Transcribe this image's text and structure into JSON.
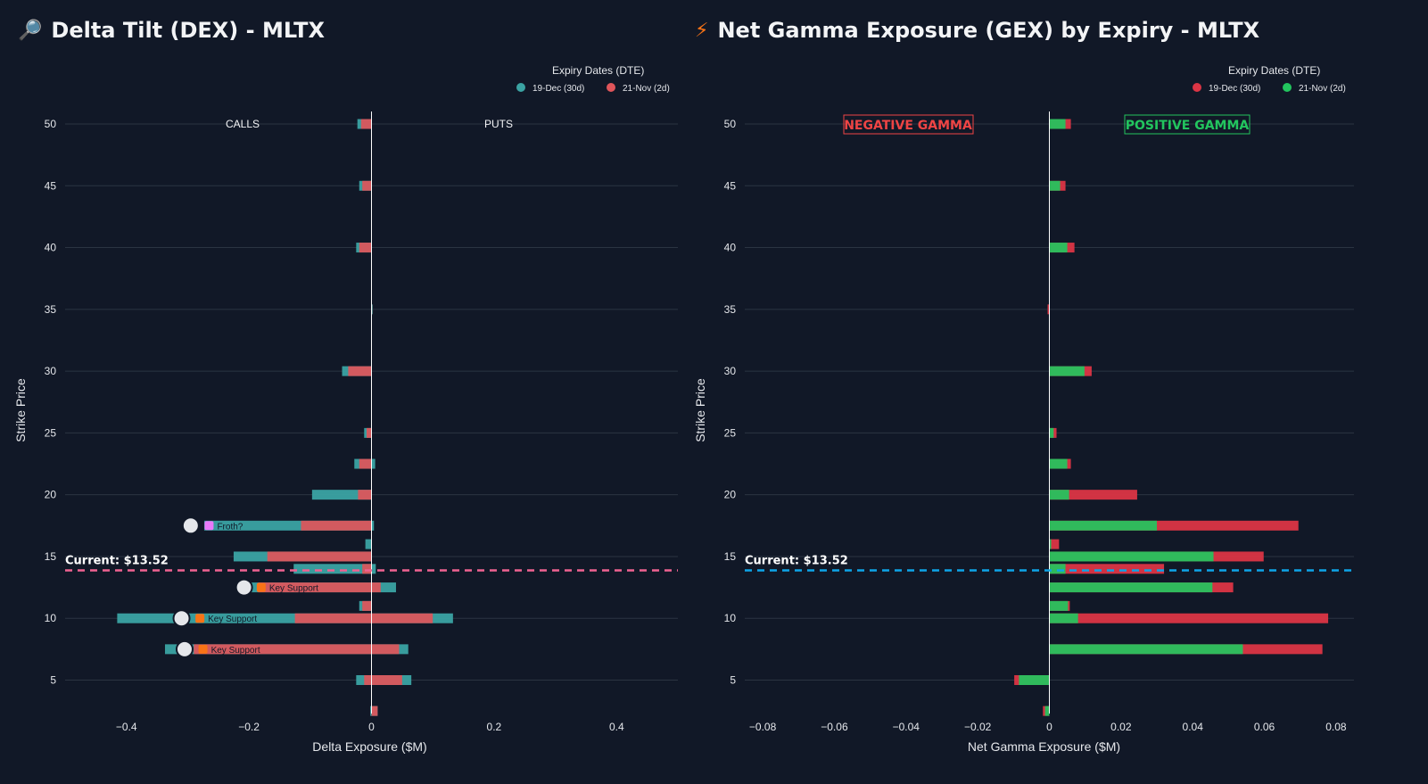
{
  "chart_data": [
    {
      "type": "bar",
      "orientation": "horizontal",
      "stacked": true,
      "title": "Delta Tilt (DEX) - MLTX",
      "title_icon": "🔎",
      "xlabel": "Delta Exposure ($M)",
      "ylabel": "Strike Price",
      "xlim": [
        -0.5,
        0.5
      ],
      "ylim": [
        2.5,
        51
      ],
      "xticks": [
        -0.4,
        -0.2,
        0,
        0.2,
        0.4
      ],
      "xtick_labels": [
        "−0.4",
        "−0.2",
        "0",
        "0.2",
        "0.4"
      ],
      "yticks": [
        5,
        10,
        15,
        20,
        25,
        30,
        35,
        40,
        45,
        50
      ],
      "legend_title": "Expiry Dates (DTE)",
      "legend_position": "top-right",
      "series": [
        {
          "name": "19-Dec (30d)",
          "color": "#3ba3a3"
        },
        {
          "name": "21-Nov (2d)",
          "color": "#e0555a"
        }
      ],
      "side_labels": {
        "left": "CALLS",
        "right": "PUTS"
      },
      "current_price": 13.52,
      "current_label": "Current: $13.52",
      "current_line_color": "#f06292",
      "bars": [
        {
          "strike": 50,
          "s1": [
            -0.023,
            0
          ],
          "s2": [
            -0.017,
            0
          ]
        },
        {
          "strike": 45,
          "s1": [
            -0.02,
            0
          ],
          "s2": [
            -0.015,
            0
          ]
        },
        {
          "strike": 40,
          "s1": [
            -0.025,
            0
          ],
          "s2": [
            -0.02,
            0
          ]
        },
        {
          "strike": 35,
          "s1": [
            0,
            0.002
          ],
          "s2": [
            0,
            0.001
          ]
        },
        {
          "strike": 30,
          "s1": [
            -0.048,
            0
          ],
          "s2": [
            -0.038,
            0
          ]
        },
        {
          "strike": 25,
          "s1": [
            -0.012,
            0
          ],
          "s2": [
            -0.008,
            0
          ]
        },
        {
          "strike": 22.5,
          "s1": [
            -0.028,
            0.006
          ],
          "s2": [
            -0.02,
            0
          ]
        },
        {
          "strike": 20,
          "s1": [
            -0.097,
            0
          ],
          "s2": [
            -0.022,
            0
          ]
        },
        {
          "strike": 17.5,
          "s1": [
            -0.273,
            0.004
          ],
          "s2": [
            -0.115,
            0
          ]
        },
        {
          "strike": 16,
          "s1": [
            -0.01,
            0
          ],
          "s2": [
            0,
            0
          ]
        },
        {
          "strike": 15,
          "s1": [
            -0.225,
            0
          ],
          "s2": [
            -0.17,
            0
          ]
        },
        {
          "strike": 14,
          "s1": [
            -0.127,
            0.007
          ],
          "s2": [
            -0.015,
            0
          ]
        },
        {
          "strike": 12.5,
          "s1": [
            -0.22,
            0.04
          ],
          "s2": [
            -0.185,
            0.015
          ]
        },
        {
          "strike": 11,
          "s1": [
            -0.02,
            0
          ],
          "s2": [
            -0.015,
            0
          ]
        },
        {
          "strike": 10,
          "s1": [
            -0.415,
            0.133
          ],
          "s2": [
            -0.125,
            0.1
          ]
        },
        {
          "strike": 7.5,
          "s1": [
            -0.337,
            0.06
          ],
          "s2": [
            -0.29,
            0.045
          ]
        },
        {
          "strike": 5,
          "s1": [
            -0.025,
            0.065
          ],
          "s2": [
            -0.012,
            0.05
          ]
        },
        {
          "strike": 2.5,
          "s1": [
            -0.002,
            0.01
          ],
          "s2": [
            0,
            0.01
          ]
        }
      ],
      "annotations": [
        {
          "strike": 17.5,
          "marker_x": -0.295,
          "badge_x": -0.265,
          "badge_color": "#e879f9",
          "text": "Froth?"
        },
        {
          "strike": 12.5,
          "marker_x": -0.208,
          "badge_x": -0.18,
          "badge_color": "#f97316",
          "text": "Key Support"
        },
        {
          "strike": 10,
          "marker_x": -0.31,
          "badge_x": -0.28,
          "badge_color": "#f97316",
          "text": "Key Support"
        },
        {
          "strike": 7.5,
          "marker_x": -0.305,
          "badge_x": -0.275,
          "badge_color": "#f97316",
          "text": "Key Support"
        }
      ]
    },
    {
      "type": "bar",
      "orientation": "horizontal",
      "stacked": true,
      "title": "Net Gamma Exposure (GEX) by Expiry - MLTX",
      "title_icon": "⚡",
      "xlabel": "Net Gamma Exposure ($M)",
      "ylabel": "Strike Price",
      "xlim": [
        -0.085,
        0.085
      ],
      "ylim": [
        2.5,
        51
      ],
      "xticks": [
        -0.08,
        -0.06,
        -0.04,
        -0.02,
        0,
        0.02,
        0.04,
        0.06,
        0.08
      ],
      "xtick_labels": [
        "−0.08",
        "−0.06",
        "−0.04",
        "−0.02",
        "0",
        "0.02",
        "0.04",
        "0.06",
        "0.08"
      ],
      "yticks": [
        5,
        10,
        15,
        20,
        25,
        30,
        35,
        40,
        45,
        50
      ],
      "legend_title": "Expiry Dates (DTE)",
      "legend_position": "top-right",
      "series": [
        {
          "name": "19-Dec (30d)",
          "color": "#dc3545"
        },
        {
          "name": "21-Nov (2d)",
          "color": "#22c55e"
        }
      ],
      "side_labels": {
        "left": "NEGATIVE GAMMA",
        "right": "POSITIVE GAMMA"
      },
      "side_label_colors": {
        "left": "#ef4444",
        "right": "#22c55e"
      },
      "current_price": 13.52,
      "current_label": "Current: $13.52",
      "current_line_color": "#0ea5e9",
      "bars": [
        {
          "strike": 50,
          "s1": [
            0,
            0.006
          ],
          "s2": [
            0,
            0.0045
          ]
        },
        {
          "strike": 45,
          "s1": [
            0,
            0.0045
          ],
          "s2": [
            0,
            0.003
          ]
        },
        {
          "strike": 40,
          "s1": [
            0,
            0.007
          ],
          "s2": [
            0,
            0.005
          ]
        },
        {
          "strike": 35,
          "s1": [
            -0.0005,
            0
          ],
          "s2": [
            0,
            0
          ]
        },
        {
          "strike": 30,
          "s1": [
            0,
            0.0118
          ],
          "s2": [
            0,
            0.0098
          ]
        },
        {
          "strike": 25,
          "s1": [
            0,
            0.002
          ],
          "s2": [
            0,
            0.0012
          ]
        },
        {
          "strike": 22.5,
          "s1": [
            0,
            0.006
          ],
          "s2": [
            0,
            0.005
          ]
        },
        {
          "strike": 20,
          "s1": [
            0,
            0.0245
          ],
          "s2": [
            0,
            0.0055
          ]
        },
        {
          "strike": 17.5,
          "s1": [
            0,
            0.0695
          ],
          "s2": [
            0,
            0.03
          ]
        },
        {
          "strike": 16,
          "s1": [
            0,
            0.0027
          ],
          "s2": [
            0,
            0.0005
          ]
        },
        {
          "strike": 15,
          "s1": [
            0,
            0.0598
          ],
          "s2": [
            0,
            0.0458
          ]
        },
        {
          "strike": 14,
          "s1": [
            0,
            0.032
          ],
          "s2": [
            0,
            0.0045
          ]
        },
        {
          "strike": 12.5,
          "s1": [
            0,
            0.0513
          ],
          "s2": [
            0,
            0.0455
          ]
        },
        {
          "strike": 11,
          "s1": [
            0,
            0.0057
          ],
          "s2": [
            0,
            0.0052
          ]
        },
        {
          "strike": 10,
          "s1": [
            0,
            0.0778
          ],
          "s2": [
            0,
            0.008
          ]
        },
        {
          "strike": 7.5,
          "s1": [
            0,
            0.0762
          ],
          "s2": [
            0,
            0.054
          ]
        },
        {
          "strike": 5,
          "s1": [
            -0.0098,
            0
          ],
          "s2": [
            -0.0085,
            0
          ]
        },
        {
          "strike": 2.5,
          "s1": [
            -0.0018,
            0
          ],
          "s2": [
            -0.0012,
            0
          ]
        }
      ]
    }
  ]
}
